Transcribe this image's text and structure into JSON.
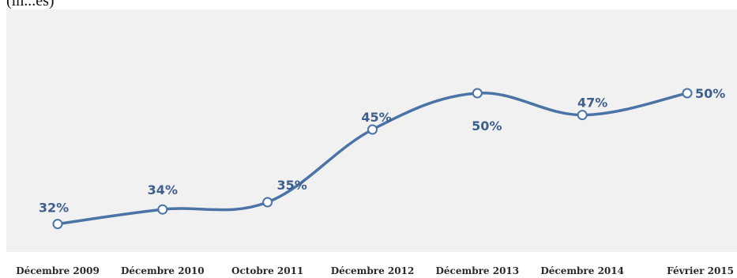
{
  "caption": "(in...es)",
  "colors": {
    "line": "#4a73a6",
    "label": "#3e5f8d",
    "plot_bg": "#f1f1f1",
    "category_text": "#2a2a2a",
    "marker_fill": "#ffffff"
  },
  "chart_data": {
    "type": "line",
    "title": "",
    "xlabel": "",
    "ylabel": "",
    "categories": [
      "Décembre 2009",
      "Décembre 2010",
      "Octobre 2011",
      "Décembre 2012",
      "Décembre 2013",
      "Décembre 2014",
      "Février 2015"
    ],
    "series": [
      {
        "values": [
          32,
          34,
          35,
          45,
          50,
          47,
          50
        ],
        "labels": [
          "32%",
          "34%",
          "35%",
          "45%",
          "50%",
          "47%",
          "50%"
        ]
      }
    ],
    "ylim": [
      30,
      52
    ],
    "grid": false,
    "legend": "none"
  }
}
